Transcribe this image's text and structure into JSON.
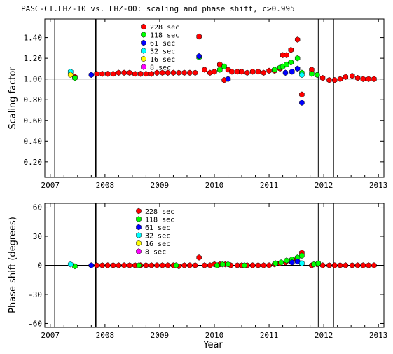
{
  "chart_data": [
    {
      "type": "scatter",
      "title": "PASC-CI.LHZ-10 vs. LHZ-00: scaling and phase shift, c>0.995",
      "xlabel": "",
      "ylabel": "Scaling factor",
      "xlim": [
        2006.9,
        2013.1
      ],
      "ylim": [
        0.05,
        1.58
      ],
      "xticks": [
        "2007",
        "2008",
        "2009",
        "2010",
        "2011",
        "2012",
        "2013"
      ],
      "yticks": [
        "0.20",
        "0.40",
        "0.60",
        "0.80",
        "1.00",
        "1.20",
        "1.40"
      ],
      "reference_line": 1.0,
      "vlines": [
        2007.08,
        2007.83,
        2011.9,
        2012.18
      ],
      "legend_position": "top-center",
      "series": [
        {
          "name": "228 sec",
          "color": "#ff0000",
          "points": [
            [
              2007.45,
              1.02
            ],
            [
              2007.85,
              1.05
            ],
            [
              2007.95,
              1.05
            ],
            [
              2008.05,
              1.05
            ],
            [
              2008.15,
              1.05
            ],
            [
              2008.25,
              1.06
            ],
            [
              2008.35,
              1.06
            ],
            [
              2008.45,
              1.06
            ],
            [
              2008.55,
              1.05
            ],
            [
              2008.65,
              1.05
            ],
            [
              2008.75,
              1.05
            ],
            [
              2008.85,
              1.05
            ],
            [
              2008.95,
              1.06
            ],
            [
              2009.05,
              1.06
            ],
            [
              2009.15,
              1.06
            ],
            [
              2009.25,
              1.06
            ],
            [
              2009.35,
              1.06
            ],
            [
              2009.45,
              1.06
            ],
            [
              2009.55,
              1.06
            ],
            [
              2009.65,
              1.06
            ],
            [
              2009.72,
              1.41
            ],
            [
              2009.82,
              1.09
            ],
            [
              2009.92,
              1.06
            ],
            [
              2010.0,
              1.07
            ],
            [
              2010.1,
              1.14
            ],
            [
              2010.18,
              0.99
            ],
            [
              2010.25,
              1.09
            ],
            [
              2010.32,
              1.07
            ],
            [
              2010.42,
              1.07
            ],
            [
              2010.5,
              1.07
            ],
            [
              2010.6,
              1.06
            ],
            [
              2010.7,
              1.07
            ],
            [
              2010.8,
              1.07
            ],
            [
              2010.9,
              1.06
            ],
            [
              2011.0,
              1.08
            ],
            [
              2011.1,
              1.08
            ],
            [
              2011.2,
              1.1
            ],
            [
              2011.25,
              1.23
            ],
            [
              2011.32,
              1.23
            ],
            [
              2011.4,
              1.28
            ],
            [
              2011.52,
              1.38
            ],
            [
              2011.6,
              0.85
            ],
            [
              2011.78,
              1.09
            ],
            [
              2011.88,
              1.04
            ],
            [
              2011.98,
              1.01
            ],
            [
              2012.1,
              0.99
            ],
            [
              2012.2,
              0.99
            ],
            [
              2012.3,
              1.0
            ],
            [
              2012.4,
              1.02
            ],
            [
              2012.52,
              1.03
            ],
            [
              2012.62,
              1.01
            ],
            [
              2012.72,
              1.0
            ],
            [
              2012.82,
              1.0
            ],
            [
              2012.92,
              1.0
            ]
          ]
        },
        {
          "name": "118 sec",
          "color": "#00ff00",
          "points": [
            [
              2007.45,
              1.01
            ],
            [
              2009.72,
              1.21
            ],
            [
              2010.1,
              1.09
            ],
            [
              2010.18,
              1.12
            ],
            [
              2011.1,
              1.09
            ],
            [
              2011.2,
              1.11
            ],
            [
              2011.25,
              1.12
            ],
            [
              2011.32,
              1.14
            ],
            [
              2011.4,
              1.16
            ],
            [
              2011.52,
              1.2
            ],
            [
              2011.6,
              1.06
            ],
            [
              2011.78,
              1.05
            ],
            [
              2011.88,
              1.04
            ]
          ]
        },
        {
          "name": "61 sec",
          "color": "#0000ff",
          "points": [
            [
              2007.75,
              1.04
            ],
            [
              2009.72,
              1.22
            ],
            [
              2010.25,
              1.0
            ],
            [
              2011.3,
              1.06
            ],
            [
              2011.42,
              1.07
            ],
            [
              2011.52,
              1.1
            ],
            [
              2011.6,
              0.77
            ]
          ]
        },
        {
          "name": "32 sec",
          "color": "#00ffff",
          "points": [
            [
              2007.37,
              1.07
            ],
            [
              2011.6,
              1.04
            ]
          ]
        },
        {
          "name": "16 sec",
          "color": "#ffff00",
          "points": [
            [
              2007.37,
              1.04
            ]
          ]
        },
        {
          "name": "8 sec",
          "color": "#ff00ff",
          "points": []
        }
      ]
    },
    {
      "type": "scatter",
      "title": "",
      "xlabel": "Year",
      "ylabel": "Phase shift (degrees)",
      "xlim": [
        2006.9,
        2013.1
      ],
      "ylim": [
        -64,
        64
      ],
      "xticks": [
        "2007",
        "2008",
        "2009",
        "2010",
        "2011",
        "2012",
        "2013"
      ],
      "yticks": [
        "-60",
        "-30",
        "0",
        "30",
        "60"
      ],
      "reference_line": 0,
      "vlines": [
        2007.08,
        2007.83,
        2011.9,
        2012.18
      ],
      "legend_position": "top-center",
      "series": [
        {
          "name": "228 sec",
          "color": "#ff0000",
          "points": [
            [
              2007.85,
              0
            ],
            [
              2007.95,
              0
            ],
            [
              2008.05,
              0
            ],
            [
              2008.15,
              0
            ],
            [
              2008.25,
              0
            ],
            [
              2008.35,
              0
            ],
            [
              2008.45,
              0
            ],
            [
              2008.55,
              0
            ],
            [
              2008.65,
              0
            ],
            [
              2008.75,
              0
            ],
            [
              2008.85,
              0
            ],
            [
              2008.95,
              0
            ],
            [
              2009.05,
              0
            ],
            [
              2009.15,
              0
            ],
            [
              2009.25,
              0
            ],
            [
              2009.35,
              -1
            ],
            [
              2009.45,
              0
            ],
            [
              2009.55,
              0
            ],
            [
              2009.65,
              0
            ],
            [
              2009.72,
              8
            ],
            [
              2009.82,
              0
            ],
            [
              2009.92,
              0
            ],
            [
              2010.0,
              1
            ],
            [
              2010.1,
              1
            ],
            [
              2010.2,
              1
            ],
            [
              2010.3,
              0
            ],
            [
              2010.42,
              0
            ],
            [
              2010.5,
              0
            ],
            [
              2010.6,
              0
            ],
            [
              2010.7,
              0
            ],
            [
              2010.8,
              0
            ],
            [
              2010.9,
              0
            ],
            [
              2011.0,
              0
            ],
            [
              2011.1,
              1
            ],
            [
              2011.2,
              2
            ],
            [
              2011.3,
              3
            ],
            [
              2011.4,
              4
            ],
            [
              2011.5,
              6
            ],
            [
              2011.6,
              13
            ],
            [
              2011.78,
              0
            ],
            [
              2011.88,
              1
            ],
            [
              2011.98,
              0
            ],
            [
              2012.1,
              0
            ],
            [
              2012.2,
              0
            ],
            [
              2012.3,
              0
            ],
            [
              2012.4,
              0
            ],
            [
              2012.52,
              0
            ],
            [
              2012.62,
              0
            ],
            [
              2012.72,
              0
            ],
            [
              2012.82,
              0
            ],
            [
              2012.92,
              0
            ]
          ]
        },
        {
          "name": "118 sec",
          "color": "#00ff00",
          "points": [
            [
              2007.45,
              -1
            ],
            [
              2008.62,
              0
            ],
            [
              2009.3,
              0
            ],
            [
              2010.05,
              0
            ],
            [
              2010.15,
              1
            ],
            [
              2010.25,
              1
            ],
            [
              2010.55,
              0
            ],
            [
              2011.12,
              2
            ],
            [
              2011.22,
              3
            ],
            [
              2011.32,
              5
            ],
            [
              2011.42,
              6
            ],
            [
              2011.52,
              8
            ],
            [
              2011.6,
              10
            ],
            [
              2011.82,
              1
            ],
            [
              2011.9,
              2
            ]
          ]
        },
        {
          "name": "61 sec",
          "color": "#0000ff",
          "points": [
            [
              2007.75,
              0
            ],
            [
              2011.42,
              3
            ],
            [
              2011.52,
              4
            ]
          ]
        },
        {
          "name": "32 sec",
          "color": "#00ffff",
          "points": [
            [
              2007.37,
              1
            ],
            [
              2011.6,
              2
            ]
          ]
        },
        {
          "name": "16 sec",
          "color": "#ffff00",
          "points": []
        },
        {
          "name": "8 sec",
          "color": "#ff00ff",
          "points": []
        }
      ]
    }
  ]
}
